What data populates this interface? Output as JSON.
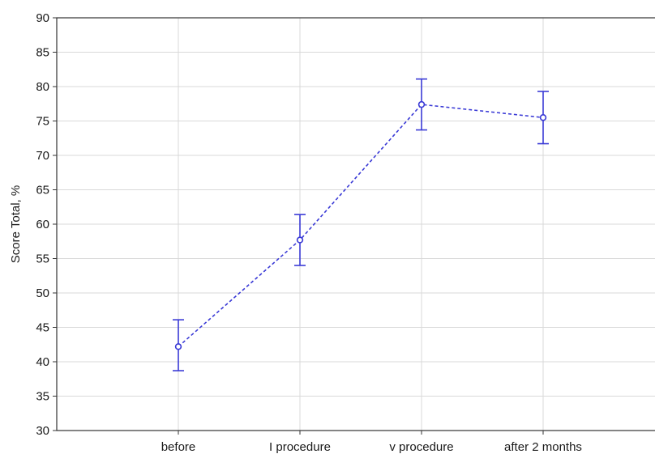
{
  "chart_data": {
    "type": "line",
    "title": "",
    "xlabel": "",
    "ylabel": "Score Total, %",
    "categories": [
      "before",
      "I procedure",
      "v procedure",
      "after 2 months"
    ],
    "series": [
      {
        "values": [
          42.2,
          57.7,
          77.4,
          75.5
        ],
        "error_low": [
          38.7,
          54.0,
          73.7,
          71.7
        ],
        "error_high": [
          46.1,
          61.4,
          81.1,
          79.3
        ],
        "color": "#3a3ad6",
        "line_style": "dashed",
        "marker": "open-circle"
      }
    ],
    "ylim": [
      30,
      90
    ],
    "yticks": [
      "30",
      "35",
      "40",
      "45",
      "50",
      "55",
      "60",
      "65",
      "70",
      "75",
      "80",
      "85",
      "90"
    ],
    "grid": true,
    "legend": "none"
  }
}
